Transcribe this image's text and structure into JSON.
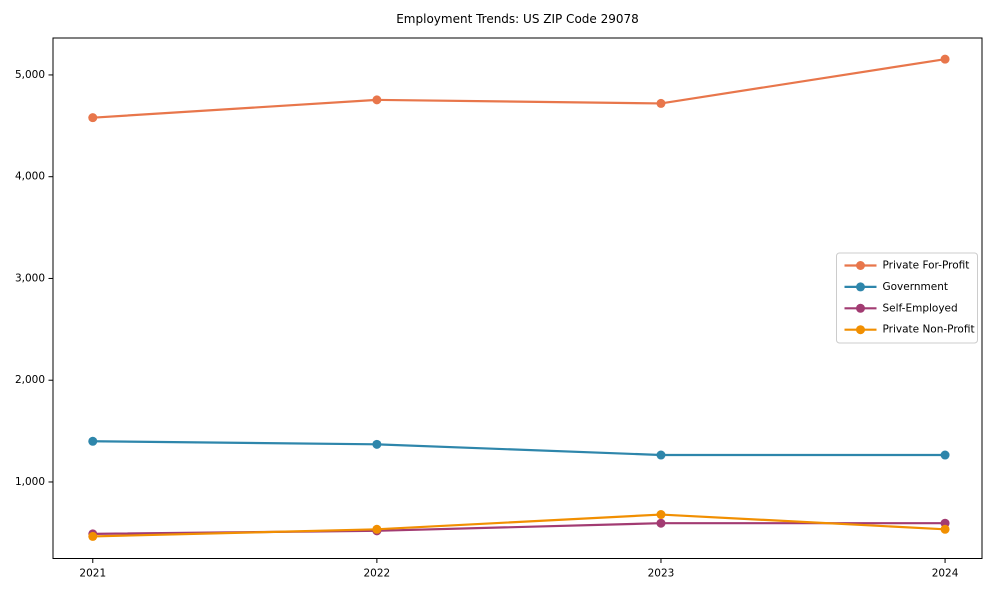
{
  "chart_data": {
    "type": "line",
    "title": "Employment Trends: US ZIP Code 29078",
    "xlabel": "",
    "ylabel": "",
    "x": [
      2021,
      2022,
      2023,
      2024
    ],
    "xtick_labels": [
      "2021",
      "2022",
      "2023",
      "2024"
    ],
    "yticks": [
      1000,
      2000,
      3000,
      4000,
      5000
    ],
    "ytick_labels": [
      "1,000",
      "2,000",
      "3,000",
      "4,000",
      "5,000"
    ],
    "xlim": [
      2020.86,
      2024.13
    ],
    "ylim": [
      248,
      5363
    ],
    "grid": false,
    "legend_position": "center-right",
    "marker": "circle",
    "series": [
      {
        "name": "Private For-Profit",
        "color": "#E8764B",
        "values": [
          4580,
          4755,
          4720,
          5155
        ]
      },
      {
        "name": "Government",
        "color": "#2E86AB",
        "values": [
          1400,
          1370,
          1265,
          1265
        ]
      },
      {
        "name": "Self-Employed",
        "color": "#A23B72",
        "values": [
          490,
          520,
          595,
          595
        ]
      },
      {
        "name": "Private Non-Profit",
        "color": "#F18F01",
        "values": [
          465,
          535,
          680,
          535
        ]
      }
    ],
    "colors": {
      "spine": "#000000",
      "background": "#ffffff",
      "legend_border": "#cccccc",
      "text": "#000000"
    }
  }
}
